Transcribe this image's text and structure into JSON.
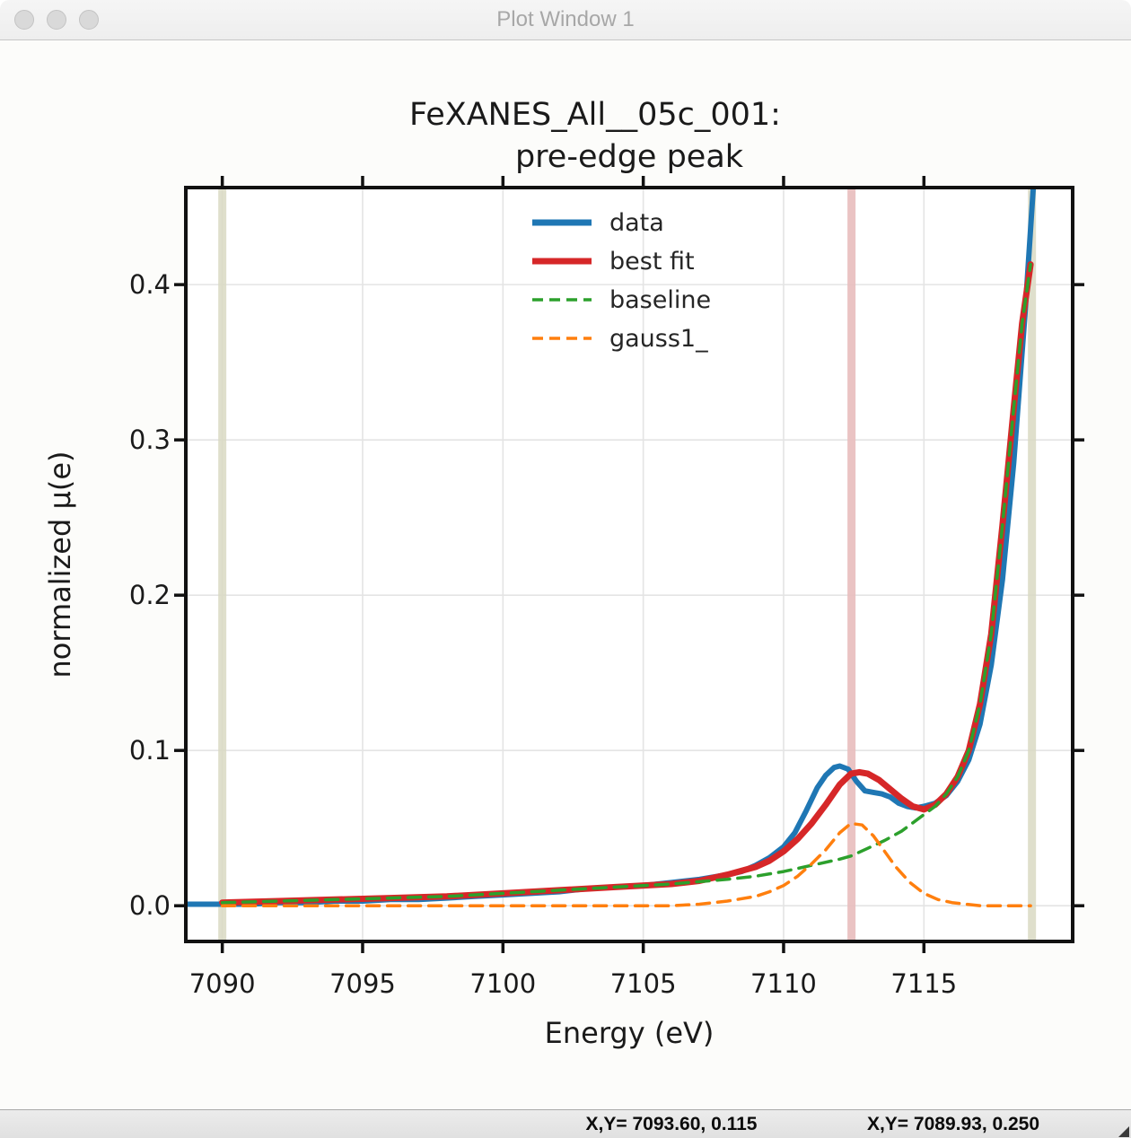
{
  "window": {
    "title": "Plot Window 1",
    "traffic_lights": [
      "close",
      "minimize",
      "zoom"
    ]
  },
  "chart_data": {
    "type": "line",
    "title": "FeXANES_All__05c_001:",
    "subtitle": "pre-edge peak",
    "xlabel": "Energy (eV)",
    "ylabel": "normalized μ(e)",
    "xlim": [
      7088.7,
      7120.3
    ],
    "ylim": [
      -0.023,
      0.4625
    ],
    "grid": true,
    "legend_position": "upper center",
    "xticks": {
      "values": [
        7090,
        7095,
        7100,
        7105,
        7110,
        7115
      ],
      "labels": [
        "7090",
        "7095",
        "7100",
        "7105",
        "7110",
        "7115"
      ]
    },
    "yticks": {
      "values": [
        0.0,
        0.1,
        0.2,
        0.3,
        0.4
      ],
      "labels": [
        "0.0",
        "0.1",
        "0.2",
        "0.3",
        "0.4"
      ]
    },
    "vertical_bands": [
      {
        "name": "fit-range-low",
        "x": 7090.0,
        "color": "#d9d9c3",
        "opacity": 0.85
      },
      {
        "name": "peak-centroid",
        "x": 7112.42,
        "color": "#e8bdbd",
        "opacity": 0.9
      },
      {
        "name": "fit-range-high",
        "x": 7118.85,
        "color": "#d9d9c3",
        "opacity": 0.85
      }
    ],
    "series": [
      {
        "name": "data",
        "color": "#1f77b4",
        "style": "solid",
        "width": 6,
        "points": [
          [
            7088.7,
            0.001
          ],
          [
            7090,
            0.001
          ],
          [
            7091,
            0.001
          ],
          [
            7092,
            0.002
          ],
          [
            7093,
            0.002
          ],
          [
            7094,
            0.003
          ],
          [
            7095,
            0.003
          ],
          [
            7096,
            0.004
          ],
          [
            7097,
            0.004
          ],
          [
            7098,
            0.005
          ],
          [
            7099,
            0.006
          ],
          [
            7100,
            0.007
          ],
          [
            7101,
            0.008
          ],
          [
            7102,
            0.009
          ],
          [
            7103,
            0.011
          ],
          [
            7104,
            0.012
          ],
          [
            7105,
            0.013
          ],
          [
            7106,
            0.015
          ],
          [
            7107,
            0.017
          ],
          [
            7108,
            0.02
          ],
          [
            7108.5,
            0.022
          ],
          [
            7109,
            0.026
          ],
          [
            7109.5,
            0.031
          ],
          [
            7110,
            0.038
          ],
          [
            7110.4,
            0.047
          ],
          [
            7110.8,
            0.061
          ],
          [
            7111.2,
            0.076
          ],
          [
            7111.5,
            0.084
          ],
          [
            7111.8,
            0.089
          ],
          [
            7112.0,
            0.09
          ],
          [
            7112.3,
            0.088
          ],
          [
            7112.6,
            0.08
          ],
          [
            7112.9,
            0.074
          ],
          [
            7113.2,
            0.073
          ],
          [
            7113.5,
            0.072
          ],
          [
            7113.8,
            0.07
          ],
          [
            7114.1,
            0.066
          ],
          [
            7114.4,
            0.064
          ],
          [
            7114.7,
            0.063
          ],
          [
            7115.0,
            0.064
          ],
          [
            7115.4,
            0.066
          ],
          [
            7115.8,
            0.071
          ],
          [
            7116.2,
            0.08
          ],
          [
            7116.6,
            0.094
          ],
          [
            7117.0,
            0.117
          ],
          [
            7117.4,
            0.155
          ],
          [
            7117.8,
            0.21
          ],
          [
            7118.2,
            0.285
          ],
          [
            7118.6,
            0.38
          ],
          [
            7118.9,
            0.463
          ]
        ]
      },
      {
        "name": "best fit",
        "color": "#d62728",
        "style": "solid",
        "width": 7,
        "points": [
          [
            7090,
            0.002
          ],
          [
            7092,
            0.003
          ],
          [
            7094,
            0.004
          ],
          [
            7096,
            0.005
          ],
          [
            7098,
            0.006
          ],
          [
            7100,
            0.008
          ],
          [
            7102,
            0.01
          ],
          [
            7104,
            0.012
          ],
          [
            7106,
            0.014
          ],
          [
            7107,
            0.016
          ],
          [
            7108,
            0.02
          ],
          [
            7109,
            0.025
          ],
          [
            7109.5,
            0.029
          ],
          [
            7110,
            0.035
          ],
          [
            7110.5,
            0.043
          ],
          [
            7111,
            0.053
          ],
          [
            7111.5,
            0.065
          ],
          [
            7112,
            0.078
          ],
          [
            7112.4,
            0.085
          ],
          [
            7112.7,
            0.086
          ],
          [
            7113.0,
            0.085
          ],
          [
            7113.4,
            0.081
          ],
          [
            7113.8,
            0.075
          ],
          [
            7114.2,
            0.069
          ],
          [
            7114.6,
            0.064
          ],
          [
            7115.0,
            0.062
          ],
          [
            7115.4,
            0.065
          ],
          [
            7115.8,
            0.072
          ],
          [
            7116.2,
            0.083
          ],
          [
            7116.6,
            0.1
          ],
          [
            7117.0,
            0.13
          ],
          [
            7117.4,
            0.175
          ],
          [
            7117.8,
            0.245
          ],
          [
            7118.2,
            0.32
          ],
          [
            7118.5,
            0.375
          ],
          [
            7118.8,
            0.413
          ]
        ]
      },
      {
        "name": "baseline",
        "color": "#2ca02c",
        "style": "dashed",
        "width": 3.5,
        "points": [
          [
            7090,
            0.002
          ],
          [
            7092,
            0.003
          ],
          [
            7094,
            0.004
          ],
          [
            7096,
            0.005
          ],
          [
            7098,
            0.006
          ],
          [
            7100,
            0.008
          ],
          [
            7102,
            0.01
          ],
          [
            7104,
            0.012
          ],
          [
            7106,
            0.014
          ],
          [
            7108,
            0.017
          ],
          [
            7109,
            0.019
          ],
          [
            7110,
            0.022
          ],
          [
            7111,
            0.026
          ],
          [
            7112,
            0.03
          ],
          [
            7112.4,
            0.032
          ],
          [
            7113,
            0.037
          ],
          [
            7113.6,
            0.042
          ],
          [
            7114.2,
            0.048
          ],
          [
            7114.8,
            0.056
          ],
          [
            7115.4,
            0.064
          ],
          [
            7115.8,
            0.072
          ],
          [
            7116.2,
            0.083
          ],
          [
            7116.6,
            0.1
          ],
          [
            7117.0,
            0.13
          ],
          [
            7117.4,
            0.175
          ],
          [
            7117.8,
            0.245
          ],
          [
            7118.2,
            0.32
          ],
          [
            7118.5,
            0.375
          ],
          [
            7118.8,
            0.413
          ]
        ]
      },
      {
        "name": "gauss1_",
        "color": "#ff7f0e",
        "style": "dashed",
        "width": 3.5,
        "points": [
          [
            7090,
            0.0
          ],
          [
            7100,
            0.0
          ],
          [
            7105,
            0.0
          ],
          [
            7106,
            0.0
          ],
          [
            7107,
            0.001
          ],
          [
            7108,
            0.003
          ],
          [
            7109,
            0.006
          ],
          [
            7109.5,
            0.009
          ],
          [
            7110,
            0.013
          ],
          [
            7110.5,
            0.019
          ],
          [
            7111,
            0.027
          ],
          [
            7111.5,
            0.036
          ],
          [
            7112,
            0.047
          ],
          [
            7112.4,
            0.053
          ],
          [
            7112.8,
            0.052
          ],
          [
            7113.2,
            0.045
          ],
          [
            7113.6,
            0.035
          ],
          [
            7114,
            0.025
          ],
          [
            7114.5,
            0.015
          ],
          [
            7115,
            0.008
          ],
          [
            7115.5,
            0.004
          ],
          [
            7116,
            0.002
          ],
          [
            7116.5,
            0.001
          ],
          [
            7117,
            0.0
          ],
          [
            7118.8,
            0.0
          ]
        ]
      }
    ]
  },
  "statusbar": {
    "field1": "X,Y= 7093.60, 0.115",
    "field2": "X,Y= 7089.93, 0.250"
  }
}
